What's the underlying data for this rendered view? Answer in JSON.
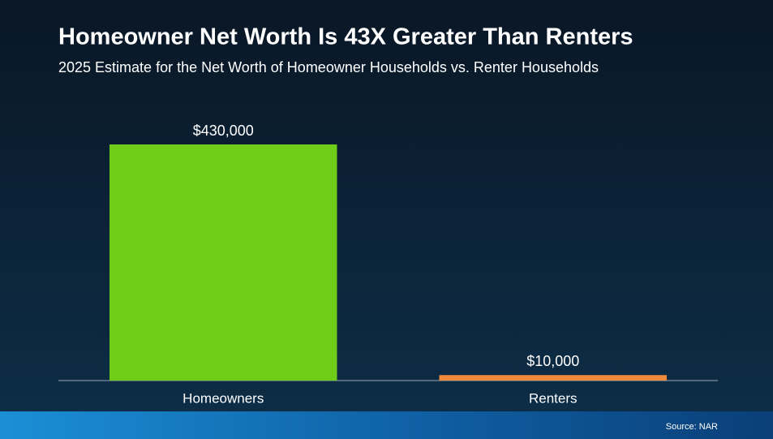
{
  "chart_data": {
    "type": "bar",
    "title": "Homeowner Net Worth Is 43X Greater Than Renters",
    "subtitle": "2025 Estimate for the Net Worth of Homeowner Households vs. Renter Households",
    "categories": [
      "Homeowners",
      "Renters"
    ],
    "values": [
      430000,
      10000
    ],
    "value_labels": [
      "$430,000",
      "$10,000"
    ],
    "colors": [
      "#6fcc18",
      "#ef8a3c"
    ],
    "source": "Source: NAR"
  }
}
